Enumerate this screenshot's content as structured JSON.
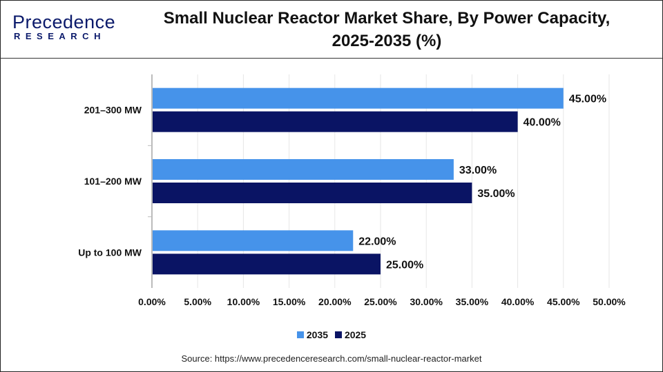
{
  "header": {
    "logo_text": "Precedence RESEARCH",
    "logo_main": "Precedence",
    "logo_sub": "RESEARCH",
    "title": "Small Nuclear Reactor Market Share, By Power Capacity, 2025-2035 (%)"
  },
  "chart_data": {
    "type": "bar",
    "orientation": "horizontal",
    "title": "Small Nuclear Reactor Market Share, By Power Capacity, 2025-2035 (%)",
    "categories": [
      "201–300 MW",
      "101–200 MW",
      "Up to 100 MW"
    ],
    "series": [
      {
        "name": "2035",
        "color": "#4693ea",
        "values": [
          45,
          33,
          22
        ],
        "labels": [
          "45.00%",
          "33.00%",
          "22.00%"
        ]
      },
      {
        "name": "2025",
        "color": "#0a1464",
        "values": [
          40,
          35,
          25
        ],
        "labels": [
          "40.00%",
          "35.00%",
          "25.00%"
        ]
      }
    ],
    "xlim": [
      0,
      50
    ],
    "xticks": [
      "0.00%",
      "5.00%",
      "10.00%",
      "15.00%",
      "20.00%",
      "25.00%",
      "30.00%",
      "35.00%",
      "40.00%",
      "45.00%",
      "50.00%"
    ],
    "grid": true,
    "legend_position": "bottom"
  },
  "source": "Source: https://www.precedenceresearch.com/small-nuclear-reactor-market"
}
